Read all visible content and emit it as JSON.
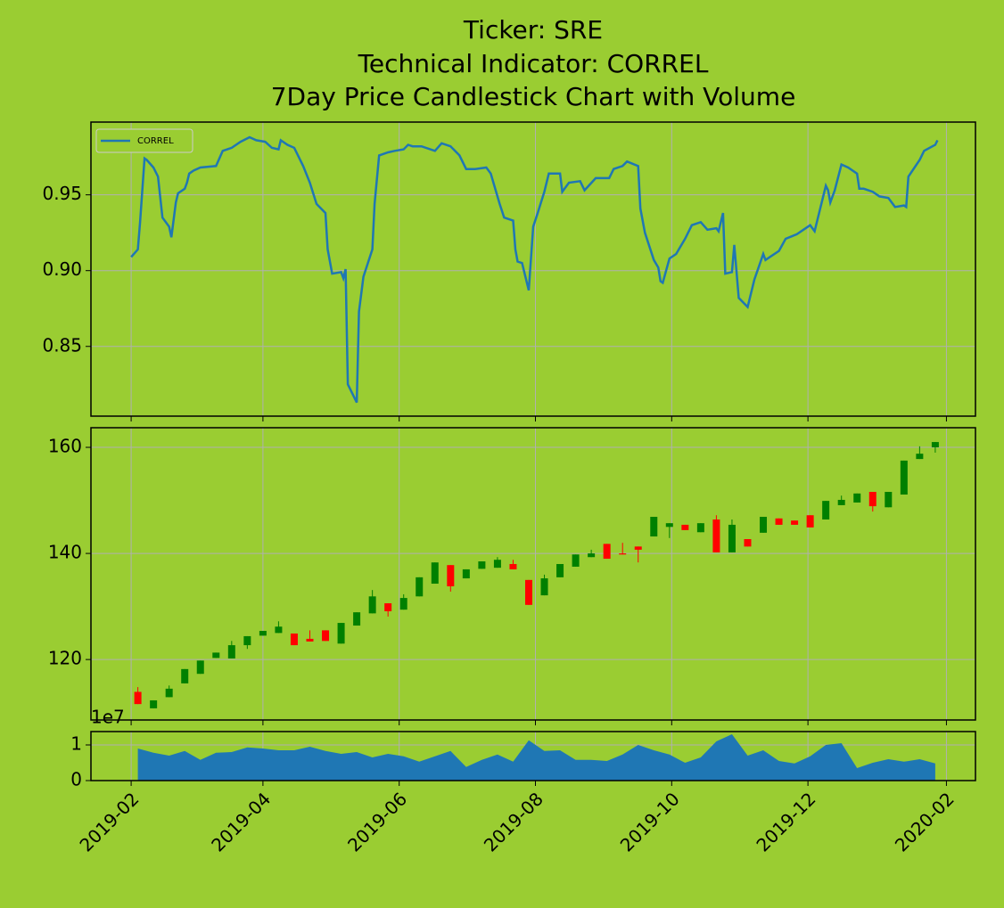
{
  "title": [
    "Ticker: SRE",
    "Technical Indicator: CORREL",
    "7Day Price Candlestick Chart with Volume"
  ],
  "chart_data": [
    {
      "type": "line",
      "legend": "upper left",
      "grid": true,
      "x": [
        "2019-02-01",
        "2019-02-04",
        "2019-02-05",
        "2019-02-07",
        "2019-02-08",
        "2019-02-11",
        "2019-02-13",
        "2019-02-15",
        "2019-02-18",
        "2019-02-19",
        "2019-02-21",
        "2019-02-22",
        "2019-02-25",
        "2019-02-26",
        "2019-02-27",
        "2019-03-01",
        "2019-03-04",
        "2019-03-11",
        "2019-03-14",
        "2019-03-18",
        "2019-03-22",
        "2019-03-26",
        "2019-03-29",
        "2019-04-02",
        "2019-04-05",
        "2019-04-08",
        "2019-04-09",
        "2019-04-12",
        "2019-04-15",
        "2019-04-19",
        "2019-04-22",
        "2019-04-25",
        "2019-04-29",
        "2019-04-30",
        "2019-05-02",
        "2019-05-06",
        "2019-05-07",
        "2019-05-08",
        "2019-05-09",
        "2019-05-13",
        "2019-05-14",
        "2019-05-16",
        "2019-05-20",
        "2019-05-21",
        "2019-05-23",
        "2019-05-27",
        "2019-05-30",
        "2019-06-03",
        "2019-06-05",
        "2019-06-07",
        "2019-06-11",
        "2019-06-17",
        "2019-06-20",
        "2019-06-24",
        "2019-06-28",
        "2019-07-01",
        "2019-07-05",
        "2019-07-10",
        "2019-07-12",
        "2019-07-16",
        "2019-07-18",
        "2019-07-22",
        "2019-07-23",
        "2019-07-24",
        "2019-07-26",
        "2019-07-29",
        "2019-07-31",
        "2019-08-02",
        "2019-08-05",
        "2019-08-07",
        "2019-08-12",
        "2019-08-13",
        "2019-08-16",
        "2019-08-21",
        "2019-08-23",
        "2019-08-28",
        "2019-09-03",
        "2019-09-05",
        "2019-09-09",
        "2019-09-11",
        "2019-09-16",
        "2019-09-17",
        "2019-09-19",
        "2019-09-23",
        "2019-09-25",
        "2019-09-26",
        "2019-09-27",
        "2019-09-30",
        "2019-10-03",
        "2019-10-07",
        "2019-10-10",
        "2019-10-14",
        "2019-10-17",
        "2019-10-21",
        "2019-10-22",
        "2019-10-24",
        "2019-10-25",
        "2019-10-28",
        "2019-10-29",
        "2019-10-31",
        "2019-11-04",
        "2019-11-07",
        "2019-11-11",
        "2019-11-12",
        "2019-11-14",
        "2019-11-18",
        "2019-11-21",
        "2019-11-26",
        "2019-11-29",
        "2019-12-02",
        "2019-12-04",
        "2019-12-09",
        "2019-12-10",
        "2019-12-11",
        "2019-12-13",
        "2019-12-16",
        "2019-12-19",
        "2019-12-23",
        "2019-12-24",
        "2019-12-26",
        "2019-12-30",
        "2020-01-02",
        "2020-01-06",
        "2020-01-09",
        "2020-01-13",
        "2020-01-14",
        "2020-01-15",
        "2020-01-20",
        "2020-01-22",
        "2020-01-27",
        "2020-01-28"
      ],
      "series": [
        {
          "name": "CORREL",
          "color": "#1f77b4",
          "values": [
            0.909,
            0.914,
            0.932,
            0.974,
            0.973,
            0.968,
            0.962,
            0.935,
            0.929,
            0.922,
            0.945,
            0.951,
            0.954,
            0.958,
            0.964,
            0.966,
            0.968,
            0.969,
            0.979,
            0.981,
            0.985,
            0.988,
            0.986,
            0.985,
            0.981,
            0.98,
            0.986,
            0.983,
            0.981,
            0.969,
            0.958,
            0.944,
            0.938,
            0.914,
            0.898,
            0.899,
            0.895,
            0.901,
            0.825,
            0.813,
            0.873,
            0.896,
            0.914,
            0.944,
            0.976,
            0.978,
            0.979,
            0.98,
            0.983,
            0.982,
            0.982,
            0.979,
            0.984,
            0.982,
            0.976,
            0.967,
            0.967,
            0.968,
            0.964,
            0.944,
            0.935,
            0.933,
            0.914,
            0.906,
            0.905,
            0.887,
            0.929,
            0.938,
            0.952,
            0.964,
            0.964,
            0.952,
            0.958,
            0.959,
            0.953,
            0.961,
            0.961,
            0.967,
            0.969,
            0.972,
            0.969,
            0.941,
            0.925,
            0.907,
            0.902,
            0.893,
            0.892,
            0.908,
            0.911,
            0.921,
            0.93,
            0.932,
            0.927,
            0.928,
            0.926,
            0.938,
            0.898,
            0.899,
            0.917,
            0.882,
            0.876,
            0.894,
            0.911,
            0.907,
            0.909,
            0.913,
            0.921,
            0.924,
            0.927,
            0.93,
            0.926,
            0.956,
            0.953,
            0.945,
            0.953,
            0.97,
            0.968,
            0.964,
            0.954,
            0.954,
            0.952,
            0.949,
            0.948,
            0.942,
            0.943,
            0.942,
            0.962,
            0.973,
            0.979,
            0.983,
            0.986
          ]
        }
      ],
      "ylim": [
        0.804,
        0.998
      ],
      "yticks": [
        0.85,
        {
          "value": 0.9,
          "label": "0.90"
        },
        0.95
      ]
    },
    {
      "type": "candlestick",
      "grid": true,
      "up_color": "green",
      "down_color": "red",
      "x": [
        "2019-02-04",
        "2019-02-11",
        "2019-02-18",
        "2019-02-25",
        "2019-03-04",
        "2019-03-11",
        "2019-03-18",
        "2019-03-25",
        "2019-04-01",
        "2019-04-08",
        "2019-04-15",
        "2019-04-22",
        "2019-04-29",
        "2019-05-06",
        "2019-05-13",
        "2019-05-20",
        "2019-05-27",
        "2019-06-03",
        "2019-06-10",
        "2019-06-17",
        "2019-06-24",
        "2019-07-01",
        "2019-07-08",
        "2019-07-15",
        "2019-07-22",
        "2019-07-29",
        "2019-08-05",
        "2019-08-12",
        "2019-08-19",
        "2019-08-26",
        "2019-09-02",
        "2019-09-09",
        "2019-09-16",
        "2019-09-23",
        "2019-09-30",
        "2019-10-07",
        "2019-10-14",
        "2019-10-21",
        "2019-10-28",
        "2019-11-04",
        "2019-11-11",
        "2019-11-18",
        "2019-11-25",
        "2019-12-02",
        "2019-12-09",
        "2019-12-16",
        "2019-12-23",
        "2019-12-30",
        "2020-01-06",
        "2020-01-13",
        "2020-01-20",
        "2020-01-27"
      ],
      "open": [
        113.9,
        110.8,
        112.9,
        115.5,
        117.3,
        120.3,
        120.2,
        122.7,
        124.5,
        125.0,
        124.9,
        123.9,
        125.5,
        123.0,
        126.4,
        128.7,
        130.6,
        129.4,
        131.9,
        134.3,
        137.8,
        135.3,
        137.1,
        137.3,
        138.0,
        135.0,
        132.1,
        135.5,
        137.5,
        139.3,
        141.8,
        140.0,
        141.3,
        143.2,
        145.0,
        145.4,
        144.0,
        146.4,
        140.2,
        142.7,
        143.9,
        146.6,
        146.2,
        147.2,
        146.4,
        149.1,
        149.6,
        151.6,
        148.7,
        151.1,
        157.8,
        160.0
      ],
      "high": [
        114.8,
        112.3,
        115.1,
        118.2,
        119.8,
        121.3,
        123.5,
        124.4,
        125.4,
        127.2,
        124.9,
        125.5,
        125.5,
        126.9,
        128.9,
        133.1,
        130.6,
        132.3,
        135.5,
        138.3,
        137.8,
        137.0,
        138.5,
        139.3,
        138.8,
        135.0,
        136.0,
        138.0,
        139.8,
        140.7,
        141.8,
        142.0,
        141.3,
        146.9,
        145.7,
        145.4,
        145.7,
        147.2,
        146.4,
        142.7,
        146.9,
        146.6,
        146.2,
        147.2,
        149.9,
        150.9,
        151.3,
        151.6,
        151.6,
        157.5,
        160.2,
        161.0
      ],
      "low": [
        111.6,
        110.8,
        112.9,
        115.5,
        117.3,
        120.3,
        120.2,
        122.0,
        124.5,
        125.0,
        122.7,
        123.4,
        123.5,
        123.0,
        126.4,
        128.7,
        128.1,
        129.4,
        131.9,
        134.3,
        132.8,
        135.3,
        137.1,
        137.3,
        137.0,
        130.3,
        132.1,
        135.5,
        137.5,
        139.3,
        139.0,
        139.8,
        138.3,
        143.2,
        142.9,
        144.4,
        144.0,
        140.2,
        140.2,
        141.3,
        143.9,
        145.4,
        145.4,
        144.9,
        146.4,
        149.1,
        149.6,
        147.9,
        148.7,
        151.1,
        157.8,
        159.0
      ],
      "close": [
        111.6,
        112.3,
        114.5,
        118.2,
        119.8,
        121.3,
        122.7,
        124.4,
        125.4,
        126.2,
        122.7,
        123.4,
        123.5,
        126.9,
        128.9,
        131.9,
        129.1,
        131.6,
        135.5,
        138.3,
        133.8,
        137.0,
        138.5,
        138.8,
        137.0,
        130.3,
        135.3,
        138.0,
        139.8,
        140.0,
        139.0,
        139.8,
        140.7,
        146.9,
        145.7,
        144.4,
        145.7,
        140.2,
        145.4,
        141.3,
        146.9,
        145.4,
        145.4,
        144.9,
        149.9,
        150.1,
        151.3,
        148.9,
        151.6,
        157.5,
        158.8,
        161.0
      ],
      "ylim": [
        108.6,
        163.7
      ],
      "yticks": [
        120,
        140,
        160
      ]
    },
    {
      "type": "area",
      "grid": true,
      "color": "#1f77b4",
      "offset_label": "1e7",
      "x": [
        "2019-02-04",
        "2019-02-11",
        "2019-02-18",
        "2019-02-25",
        "2019-03-04",
        "2019-03-11",
        "2019-03-18",
        "2019-03-25",
        "2019-04-01",
        "2019-04-08",
        "2019-04-15",
        "2019-04-22",
        "2019-04-29",
        "2019-05-06",
        "2019-05-13",
        "2019-05-20",
        "2019-05-27",
        "2019-06-03",
        "2019-06-10",
        "2019-06-17",
        "2019-06-24",
        "2019-07-01",
        "2019-07-08",
        "2019-07-15",
        "2019-07-22",
        "2019-07-29",
        "2019-08-05",
        "2019-08-12",
        "2019-08-19",
        "2019-08-26",
        "2019-09-02",
        "2019-09-09",
        "2019-09-16",
        "2019-09-23",
        "2019-09-30",
        "2019-10-07",
        "2019-10-14",
        "2019-10-21",
        "2019-10-28",
        "2019-11-04",
        "2019-11-11",
        "2019-11-18",
        "2019-11-25",
        "2019-12-02",
        "2019-12-09",
        "2019-12-16",
        "2019-12-23",
        "2019-12-30",
        "2020-01-06",
        "2020-01-13",
        "2020-01-20",
        "2020-01-27"
      ],
      "values": [
        9000000,
        7800000,
        7000000,
        8300000,
        5800000,
        7800000,
        8000000,
        9300000,
        9000000,
        8500000,
        8500000,
        9500000,
        8300000,
        7500000,
        8000000,
        6500000,
        7500000,
        6800000,
        5300000,
        6800000,
        8300000,
        3800000,
        5800000,
        7300000,
        5300000,
        11300000,
        8300000,
        8500000,
        5800000,
        5800000,
        5500000,
        7300000,
        10000000,
        8500000,
        7300000,
        5000000,
        6500000,
        11000000,
        13000000,
        7000000,
        8500000,
        5500000,
        4800000,
        6800000,
        10000000,
        10500000,
        3500000,
        5000000,
        6000000,
        5300000,
        6000000,
        4800000
      ],
      "ylim": [
        0,
        13750000
      ],
      "yticks": [
        0,
        {
          "value": 10000000,
          "label": "1"
        }
      ],
      "xlim": [
        "2019-01-14",
        "2020-02-14"
      ],
      "xticks": [
        "2019-02",
        "2019-04",
        "2019-06",
        "2019-08",
        "2019-10",
        "2019-12",
        "2020-02"
      ]
    }
  ]
}
